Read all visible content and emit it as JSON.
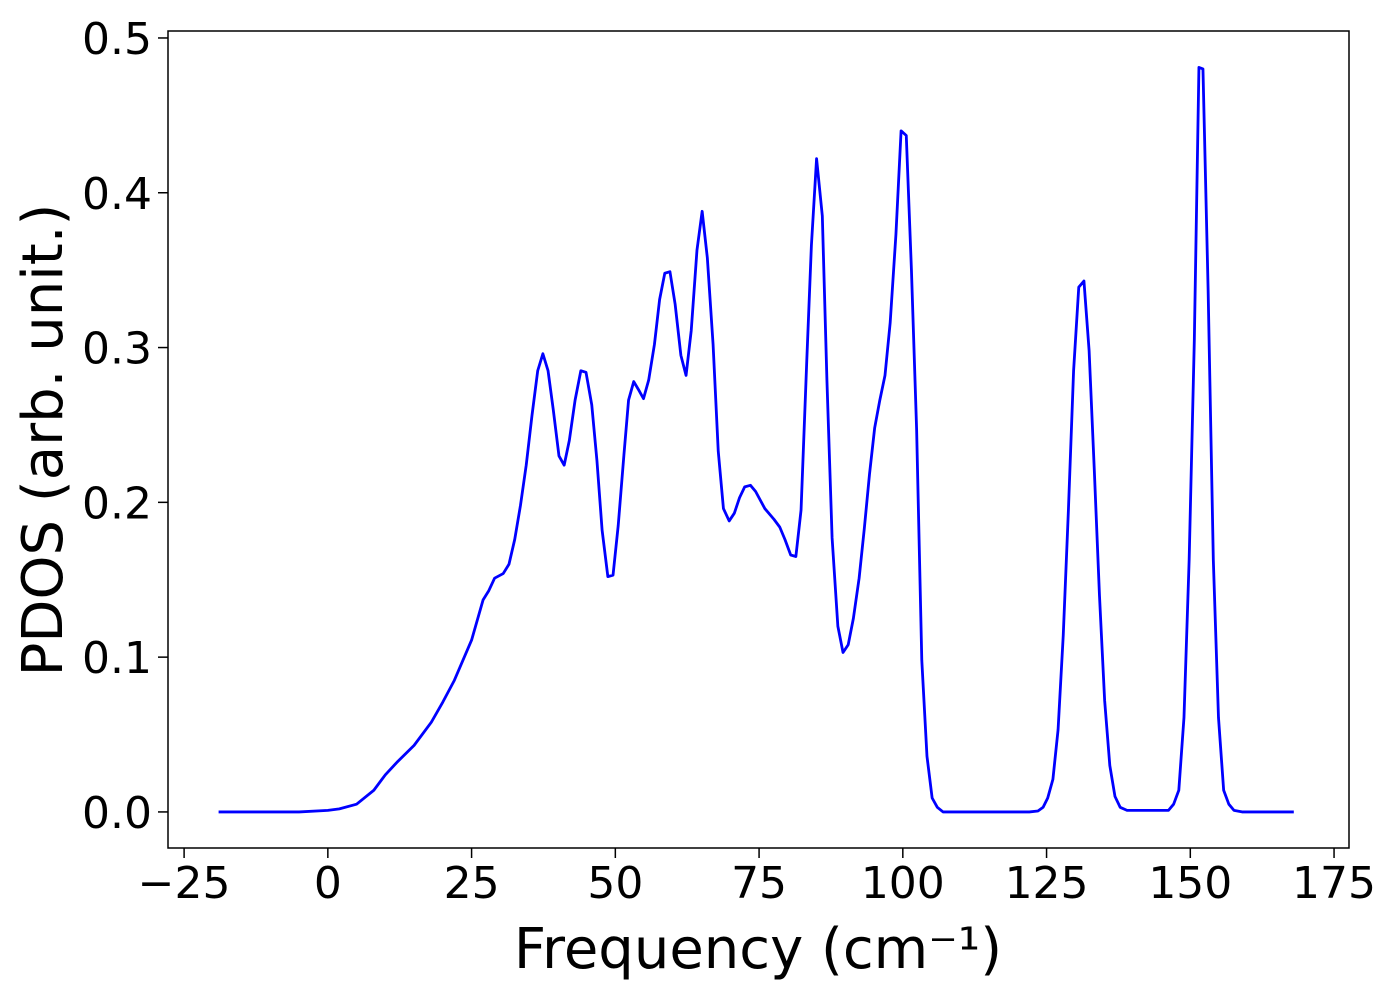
{
  "chart_data": {
    "type": "line",
    "xlabel": "Frequency (cm⁻¹)",
    "ylabel": "PDOS (arb. unit.)",
    "x": [
      -19,
      -5,
      0,
      2,
      5,
      8,
      10,
      12,
      15,
      18,
      20,
      22,
      25,
      27,
      28,
      29,
      30.5,
      31.5,
      32.5,
      33.5,
      34.5,
      35.5,
      36.5,
      37.4,
      38.3,
      39.2,
      40.2,
      41.1,
      42,
      43,
      44,
      44.9,
      45.9,
      46.8,
      47.7,
      48.7,
      49.6,
      50.5,
      51.5,
      52.3,
      53.2,
      54,
      54.9,
      55.8,
      56.8,
      57.7,
      58.6,
      59.5,
      60.4,
      61.4,
      62.3,
      63.2,
      64.2,
      65.1,
      66,
      67,
      67.9,
      68.8,
      69.8,
      70.7,
      71.6,
      72.5,
      73.5,
      74.4,
      76,
      77.6,
      78.6,
      79.5,
      80.5,
      81.4,
      82.3,
      83.3,
      84.1,
      85,
      86,
      86.8,
      87.7,
      88.7,
      89.6,
      90.5,
      91.4,
      92.4,
      93.3,
      94.2,
      95.1,
      96,
      96.9,
      97.8,
      98.8,
      99.7,
      100.6,
      101.5,
      102.4,
      103.3,
      104.2,
      105.1,
      106,
      107,
      122,
      123.5,
      124.4,
      125.2,
      126.1,
      127,
      127.9,
      128.8,
      129.7,
      130.6,
      131.5,
      132.4,
      133.3,
      134.2,
      135.1,
      136,
      136.9,
      137.8,
      139,
      146.2,
      147.1,
      148,
      148.9,
      149.8,
      150.7,
      151.5,
      152.2,
      153.1,
      154,
      154.9,
      155.8,
      156.7,
      157.6,
      159,
      168
    ],
    "series": [
      {
        "name": "PDOS",
        "color": "#0000ff",
        "values": [
          0,
          0,
          0.001,
          0.002,
          0.005,
          0.014,
          0.024,
          0.032,
          0.043,
          0.058,
          0.071,
          0.085,
          0.111,
          0.137,
          0.143,
          0.151,
          0.154,
          0.16,
          0.176,
          0.198,
          0.224,
          0.256,
          0.285,
          0.296,
          0.285,
          0.26,
          0.23,
          0.224,
          0.24,
          0.266,
          0.285,
          0.284,
          0.263,
          0.227,
          0.182,
          0.152,
          0.153,
          0.185,
          0.231,
          0.266,
          0.278,
          0.273,
          0.267,
          0.279,
          0.302,
          0.331,
          0.348,
          0.349,
          0.328,
          0.295,
          0.282,
          0.311,
          0.363,
          0.388,
          0.358,
          0.302,
          0.233,
          0.196,
          0.188,
          0.193,
          0.203,
          0.21,
          0.211,
          0.207,
          0.196,
          0.189,
          0.184,
          0.176,
          0.166,
          0.165,
          0.195,
          0.292,
          0.366,
          0.422,
          0.385,
          0.279,
          0.177,
          0.12,
          0.103,
          0.108,
          0.125,
          0.151,
          0.183,
          0.218,
          0.248,
          0.266,
          0.282,
          0.316,
          0.373,
          0.44,
          0.437,
          0.35,
          0.247,
          0.098,
          0.036,
          0.009,
          0.003,
          0,
          0,
          0.0006,
          0.003,
          0.009,
          0.021,
          0.053,
          0.114,
          0.195,
          0.285,
          0.339,
          0.343,
          0.298,
          0.221,
          0.14,
          0.072,
          0.03,
          0.01,
          0.003,
          0.001,
          0.001,
          0.005,
          0.014,
          0.061,
          0.163,
          0.305,
          0.481,
          0.48,
          0.337,
          0.163,
          0.061,
          0.014,
          0.005,
          0.001,
          0,
          0
        ]
      }
    ],
    "xlim": [
      -27.8,
      177.6
    ],
    "ylim": [
      -0.0233,
      0.5045
    ],
    "xticks": [
      {
        "value": -25,
        "label": "−25"
      },
      0,
      25,
      50,
      75,
      100,
      125,
      150,
      175
    ],
    "yticks": [
      {
        "value": 0,
        "label": "0.0"
      },
      0.1,
      0.2,
      0.3,
      0.4,
      0.5
    ],
    "grid": false
  }
}
